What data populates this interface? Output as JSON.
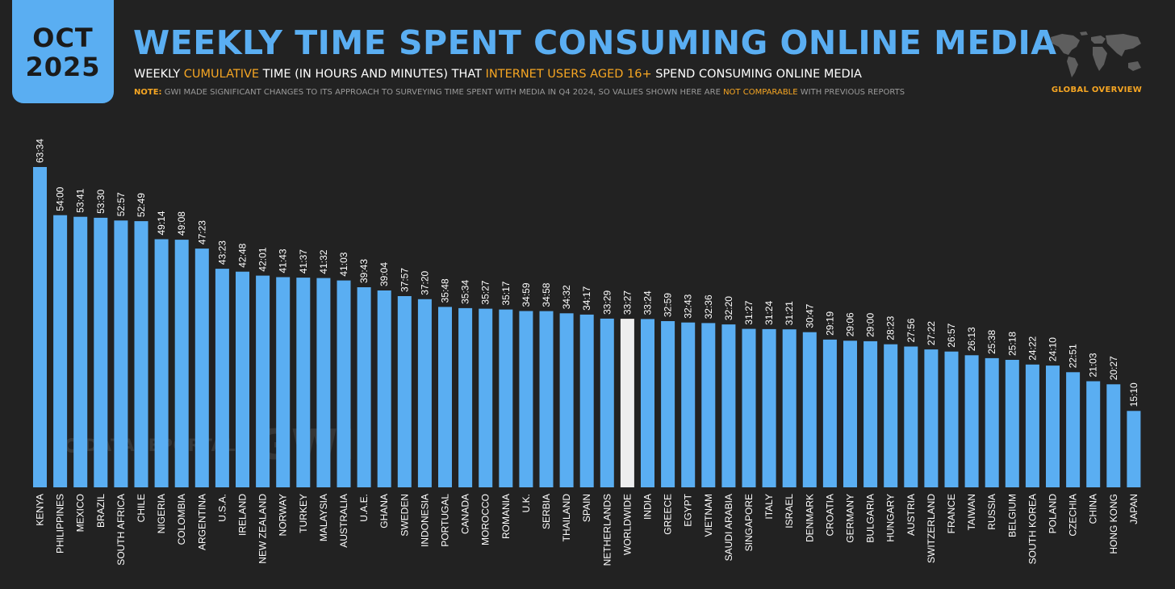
{
  "header": {
    "badge_month": "OCT",
    "badge_year": "2025",
    "title": "WEEKLY TIME SPENT CONSUMING ONLINE MEDIA",
    "subtitle_p1": "WEEKLY ",
    "subtitle_hl1": "CUMULATIVE",
    "subtitle_p2": " TIME (IN HOURS AND MINUTES) THAT ",
    "subtitle_hl2": "INTERNET USERS AGED 16+",
    "subtitle_p3": " SPEND CONSUMING ONLINE MEDIA",
    "note_label": "NOTE:",
    "note_p1": " GWI MADE SIGNIFICANT CHANGES TO ITS APPROACH TO SURVEYING TIME SPENT WITH MEDIA IN Q4 2024, SO VALUES SHOWN HERE ARE ",
    "note_hl": "NOT COMPARABLE",
    "note_p2": " WITH PREVIOUS REPORTS",
    "overview_label": "GLOBAL OVERVIEW"
  },
  "watermark": {
    "brand1": "DATAREPORTAL",
    "brand2": "GWI."
  },
  "colors": {
    "background": "#222222",
    "bar": "#5aaef2",
    "highlight_bar": "#eeeeee",
    "accent": "#f6a623",
    "text": "#ffffff"
  },
  "chart_data": {
    "type": "bar",
    "title": "WEEKLY TIME SPENT CONSUMING ONLINE MEDIA",
    "unit": "hours:minutes per week",
    "highlight": "WORLDWIDE",
    "ylim": [
      0,
      63.6
    ],
    "categories": [
      "KENYA",
      "PHILIPPINES",
      "MEXICO",
      "BRAZIL",
      "SOUTH AFRICA",
      "CHILE",
      "NIGERIA",
      "COLOMBIA",
      "ARGENTINA",
      "U.S.A.",
      "IRELAND",
      "NEW ZEALAND",
      "NORWAY",
      "TURKEY",
      "MALAYSIA",
      "AUSTRALIA",
      "U.A.E.",
      "GHANA",
      "SWEDEN",
      "INDONESIA",
      "PORTUGAL",
      "CANADA",
      "MOROCCO",
      "ROMANIA",
      "U.K.",
      "SERBIA",
      "THAILAND",
      "SPAIN",
      "NETHERLANDS",
      "WORLDWIDE",
      "INDIA",
      "GREECE",
      "EGYPT",
      "VIETNAM",
      "SAUDI ARABIA",
      "SINGAPORE",
      "ITALY",
      "ISRAEL",
      "DENMARK",
      "CROATIA",
      "GERMANY",
      "BULGARIA",
      "HUNGARY",
      "AUSTRIA",
      "SWITZERLAND",
      "FRANCE",
      "TAIWAN",
      "RUSSIA",
      "BELGIUM",
      "SOUTH KOREA",
      "POLAND",
      "CZECHIA",
      "CHINA",
      "HONG KONG",
      "JAPAN"
    ],
    "labels": [
      "63:34",
      "54:00",
      "53:41",
      "53:30",
      "52:57",
      "52:49",
      "49:14",
      "49:08",
      "47:23",
      "43:23",
      "42:48",
      "42:01",
      "41:43",
      "41:37",
      "41:32",
      "41:03",
      "39:43",
      "39:04",
      "37:57",
      "37:20",
      "35:48",
      "35:34",
      "35:27",
      "35:17",
      "34:59",
      "34:58",
      "34:32",
      "34:17",
      "33:29",
      "33:27",
      "33:24",
      "32:59",
      "32:43",
      "32:36",
      "32:20",
      "31:27",
      "31:24",
      "31:21",
      "30:47",
      "29:19",
      "29:06",
      "29:00",
      "28:23",
      "27:56",
      "27:22",
      "26:57",
      "26:13",
      "25:38",
      "25:18",
      "24:22",
      "24:10",
      "22:51",
      "21:03",
      "20:27",
      "15:10"
    ],
    "values": [
      63.567,
      54.0,
      53.683,
      53.5,
      52.95,
      52.817,
      49.233,
      49.133,
      47.383,
      43.383,
      42.8,
      42.017,
      41.717,
      41.617,
      41.533,
      41.05,
      39.717,
      39.067,
      37.95,
      37.333,
      35.8,
      35.567,
      35.45,
      35.283,
      34.983,
      34.967,
      34.533,
      34.283,
      33.483,
      33.45,
      33.4,
      32.983,
      32.717,
      32.6,
      32.333,
      31.45,
      31.4,
      31.35,
      30.783,
      29.317,
      29.1,
      29.0,
      28.383,
      27.933,
      27.367,
      26.95,
      26.217,
      25.633,
      25.3,
      24.367,
      24.167,
      22.85,
      21.05,
      20.45,
      15.167
    ]
  }
}
